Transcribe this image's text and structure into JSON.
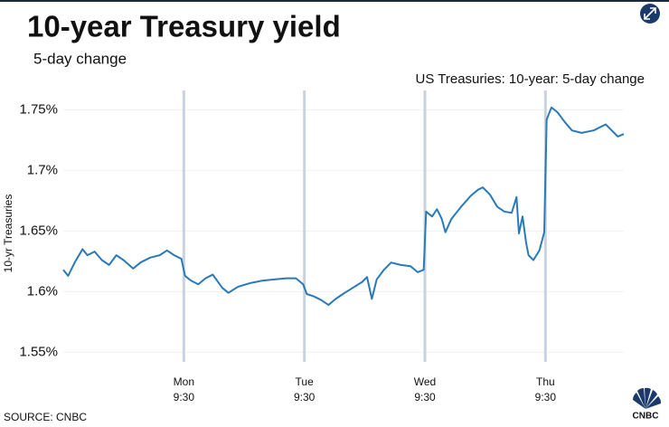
{
  "chart_data": {
    "type": "line",
    "title": "10-year Treasury yield",
    "subtitle": "5-day change",
    "legend_label": "US Treasuries: 10-year: 5-day change",
    "ylabel": "10-yr Treasuries",
    "source": "SOURCE: CNBC",
    "logo": "CNBC",
    "x": [
      0,
      4,
      10,
      16,
      20,
      26,
      32,
      38,
      44,
      50,
      58,
      64,
      72,
      80,
      86,
      92,
      98,
      101,
      106,
      112,
      118,
      124,
      132,
      137,
      145,
      155,
      165,
      175,
      185,
      193,
      199,
      202,
      208,
      214,
      220,
      226,
      232,
      240,
      248,
      252,
      256,
      260,
      266,
      272,
      280,
      288,
      294,
      299,
      301,
      306,
      310,
      314,
      317,
      322,
      330,
      338,
      344,
      348,
      354,
      360,
      366,
      372,
      376,
      378,
      381,
      384,
      386,
      390,
      395,
      399,
      401,
      405,
      410,
      416,
      422,
      430,
      440,
      450,
      455,
      460,
      465
    ],
    "series": [
      {
        "name": "US Treasuries: 10-year: 5-day change",
        "color": "#2a7ab8",
        "values": [
          1.618,
          1.613,
          1.625,
          1.635,
          1.63,
          1.633,
          1.626,
          1.622,
          1.63,
          1.626,
          1.619,
          1.624,
          1.628,
          1.63,
          1.634,
          1.63,
          1.627,
          1.613,
          1.609,
          1.606,
          1.611,
          1.614,
          1.603,
          1.599,
          1.604,
          1.607,
          1.609,
          1.61,
          1.611,
          1.611,
          1.606,
          1.598,
          1.596,
          1.593,
          1.589,
          1.594,
          1.598,
          1.603,
          1.608,
          1.612,
          1.594,
          1.61,
          1.618,
          1.624,
          1.622,
          1.621,
          1.616,
          1.618,
          1.666,
          1.662,
          1.668,
          1.66,
          1.649,
          1.66,
          1.67,
          1.679,
          1.684,
          1.686,
          1.68,
          1.67,
          1.666,
          1.665,
          1.678,
          1.648,
          1.662,
          1.64,
          1.63,
          1.626,
          1.634,
          1.649,
          1.742,
          1.752,
          1.748,
          1.74,
          1.733,
          1.731,
          1.733,
          1.738,
          1.733,
          1.728,
          1.73
        ]
      }
    ],
    "xlim": [
      0,
      465
    ],
    "xticks": [
      {
        "value": 100,
        "label": "Mon 9:30"
      },
      {
        "value": 200,
        "label": "Tue 9:30"
      },
      {
        "value": 300,
        "label": "Wed 9:30"
      },
      {
        "value": 400,
        "label": "Thu 9:30"
      }
    ],
    "ylim": [
      1.542,
      1.766
    ],
    "yticks": [
      {
        "value": 1.55,
        "label": "1.55%"
      },
      {
        "value": 1.6,
        "label": "1.6%"
      },
      {
        "value": 1.65,
        "label": "1.65%"
      },
      {
        "value": 1.7,
        "label": "1.7%"
      },
      {
        "value": 1.75,
        "label": "1.75%"
      }
    ],
    "grid": true
  }
}
